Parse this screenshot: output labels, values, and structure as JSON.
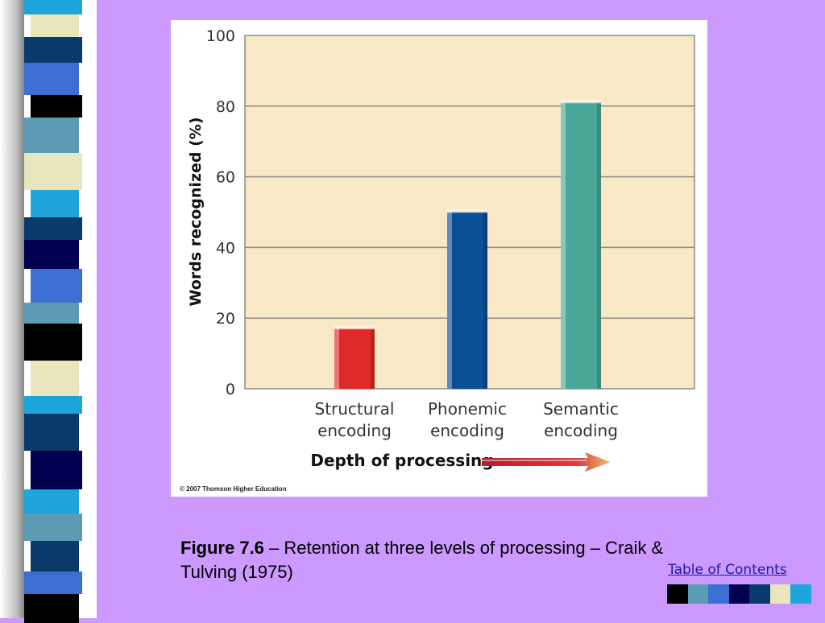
{
  "chart_data": {
    "type": "bar",
    "title": "",
    "categories": [
      [
        "Structural",
        "encoding"
      ],
      [
        "Phonemic",
        "encoding"
      ],
      [
        "Semantic",
        "encoding"
      ]
    ],
    "values": [
      17,
      50,
      81
    ],
    "bar_colors": [
      "#e02a2a",
      "#0b4f94",
      "#4aa898"
    ],
    "ylabel": "Words recognized (%)",
    "xlabel": "Depth of processing",
    "ylim": [
      0,
      100
    ],
    "yticks": [
      "0",
      "20",
      "40",
      "60",
      "80",
      "100"
    ],
    "grid": true,
    "plot_background": "#f8e8c5"
  },
  "figure": {
    "copyright": "© 2007 Thomson Higher Education"
  },
  "caption": {
    "label": "Figure 7.6",
    "text": " – Retention at three levels of processing – Craik & Tulving (1975)"
  },
  "nav": {
    "table_of_contents": "Table of Contents"
  },
  "theme": {
    "slide_background": "#cc99ff",
    "swatch_colors": [
      "#000000",
      "#5b9bb3",
      "#3b6fd4",
      "#000050",
      "#0a3a6a",
      "#e8e6bc",
      "#1ea6dc"
    ]
  }
}
